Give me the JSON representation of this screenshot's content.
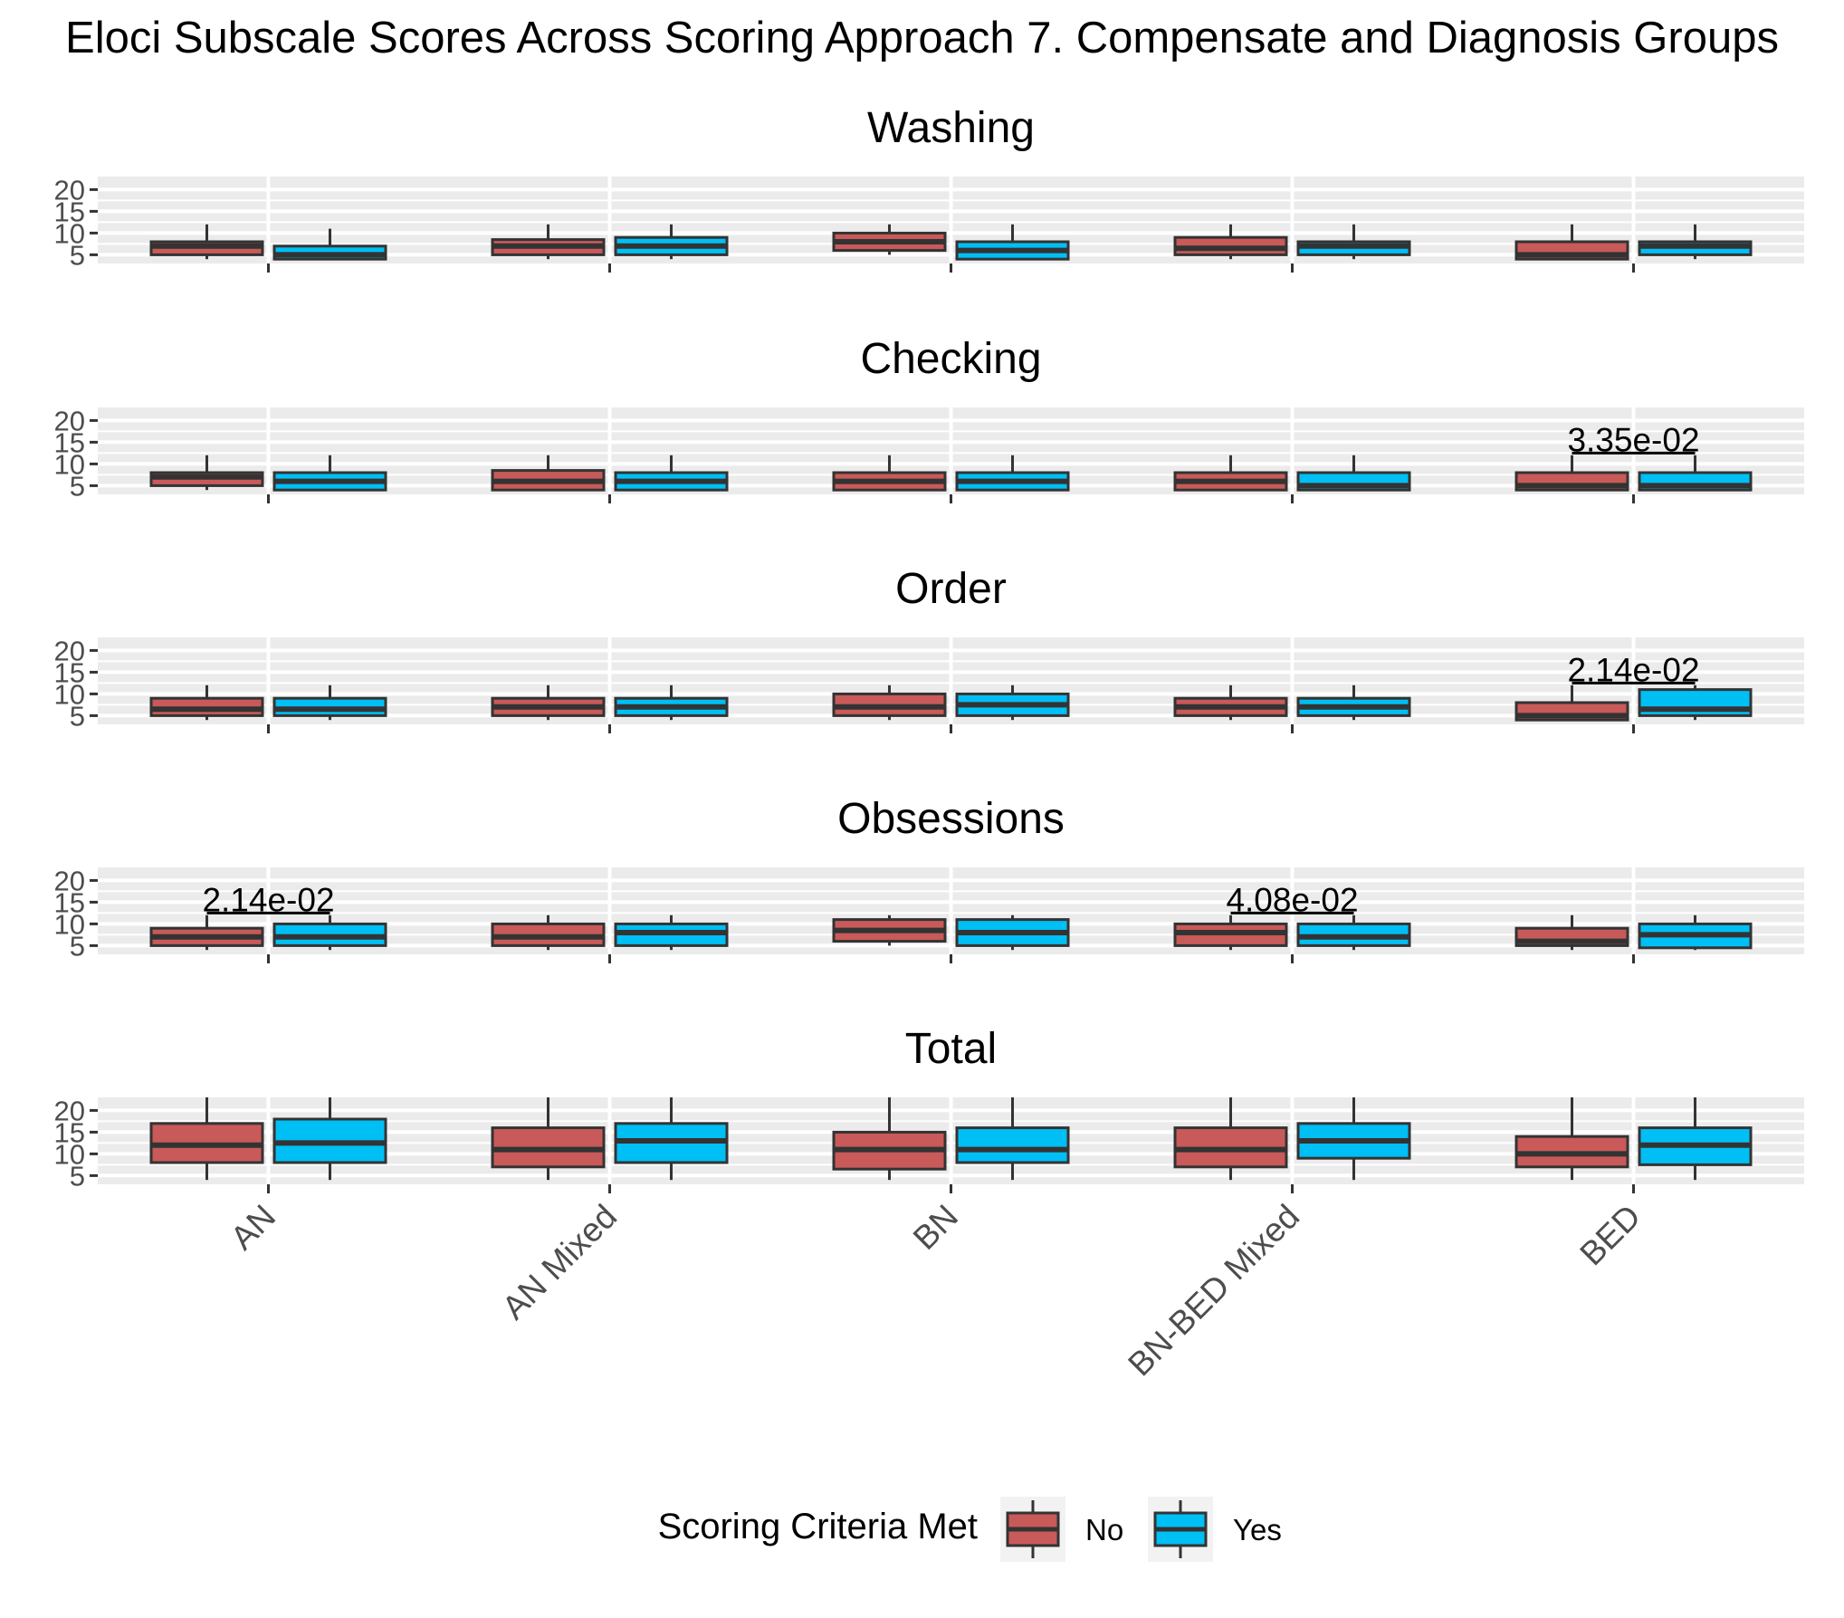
{
  "chart_data": {
    "type": "box",
    "title": "Eloci Subscale Scores Across Scoring Approach 7. Compensate and Diagnosis Groups",
    "categories": [
      "AN",
      "AN Mixed",
      "BN",
      "BN-BED Mixed",
      "BED"
    ],
    "legend": {
      "title": "Scoring Criteria Met",
      "position": "bottom",
      "entries": [
        {
          "label": "No",
          "color": "#c85a59"
        },
        {
          "label": "Yes",
          "color": "#00bff4"
        }
      ]
    },
    "y_ticks": [
      5,
      10,
      15,
      20
    ],
    "ylim": [
      3,
      23
    ],
    "grid": true,
    "facets": [
      {
        "name": "Washing",
        "series": [
          {
            "name": "No",
            "boxes": [
              {
                "min": 4,
                "q1": 5,
                "median": 7,
                "q3": 8,
                "max": 12
              },
              {
                "min": 4,
                "q1": 5,
                "median": 7,
                "q3": 8.5,
                "max": 12
              },
              {
                "min": 5,
                "q1": 6,
                "median": 8,
                "q3": 10,
                "max": 12
              },
              {
                "min": 4,
                "q1": 5,
                "median": 6.5,
                "q3": 9,
                "max": 12
              },
              {
                "min": 4,
                "q1": 4,
                "median": 5,
                "q3": 8,
                "max": 12
              }
            ]
          },
          {
            "name": "Yes",
            "boxes": [
              {
                "min": 4,
                "q1": 4,
                "median": 5,
                "q3": 7,
                "max": 11
              },
              {
                "min": 4,
                "q1": 5,
                "median": 7,
                "q3": 9,
                "max": 12
              },
              {
                "min": 4,
                "q1": 4,
                "median": 6,
                "q3": 8,
                "max": 12
              },
              {
                "min": 4,
                "q1": 5,
                "median": 7,
                "q3": 8,
                "max": 12
              },
              {
                "min": 4,
                "q1": 5,
                "median": 7,
                "q3": 8,
                "max": 12
              }
            ]
          }
        ],
        "annotations": []
      },
      {
        "name": "Checking",
        "series": [
          {
            "name": "No",
            "boxes": [
              {
                "min": 4,
                "q1": 5,
                "median": 7,
                "q3": 8,
                "max": 12
              },
              {
                "min": 4,
                "q1": 4,
                "median": 6,
                "q3": 8.5,
                "max": 12
              },
              {
                "min": 4,
                "q1": 4,
                "median": 6,
                "q3": 8,
                "max": 12
              },
              {
                "min": 4,
                "q1": 4,
                "median": 6,
                "q3": 8,
                "max": 12
              },
              {
                "min": 4,
                "q1": 4,
                "median": 5,
                "q3": 8,
                "max": 12
              }
            ]
          },
          {
            "name": "Yes",
            "boxes": [
              {
                "min": 4,
                "q1": 4,
                "median": 6,
                "q3": 8,
                "max": 12
              },
              {
                "min": 4,
                "q1": 4,
                "median": 6,
                "q3": 8,
                "max": 12
              },
              {
                "min": 4,
                "q1": 4,
                "median": 6,
                "q3": 8,
                "max": 12
              },
              {
                "min": 4,
                "q1": 4,
                "median": 5,
                "q3": 8,
                "max": 12
              },
              {
                "min": 4,
                "q1": 4,
                "median": 5,
                "q3": 8,
                "max": 12
              }
            ]
          }
        ],
        "annotations": [
          {
            "category": "BED",
            "label": "3.35e-02",
            "y": 12.5
          }
        ]
      },
      {
        "name": "Order",
        "series": [
          {
            "name": "No",
            "boxes": [
              {
                "min": 4,
                "q1": 5,
                "median": 6.5,
                "q3": 9,
                "max": 12
              },
              {
                "min": 4,
                "q1": 5,
                "median": 7,
                "q3": 9,
                "max": 12
              },
              {
                "min": 4,
                "q1": 5,
                "median": 7,
                "q3": 10,
                "max": 12
              },
              {
                "min": 4,
                "q1": 5,
                "median": 7,
                "q3": 9,
                "max": 12
              },
              {
                "min": 4,
                "q1": 4,
                "median": 5,
                "q3": 8,
                "max": 12
              }
            ]
          },
          {
            "name": "Yes",
            "boxes": [
              {
                "min": 4,
                "q1": 5,
                "median": 6.5,
                "q3": 9,
                "max": 12
              },
              {
                "min": 4,
                "q1": 5,
                "median": 7,
                "q3": 9,
                "max": 12
              },
              {
                "min": 4,
                "q1": 5,
                "median": 7.5,
                "q3": 10,
                "max": 12
              },
              {
                "min": 4,
                "q1": 5,
                "median": 7,
                "q3": 9,
                "max": 12
              },
              {
                "min": 4,
                "q1": 5,
                "median": 6.5,
                "q3": 11,
                "max": 12
              }
            ]
          }
        ],
        "annotations": [
          {
            "category": "BED",
            "label": "2.14e-02",
            "y": 12.5
          }
        ]
      },
      {
        "name": "Obsessions",
        "series": [
          {
            "name": "No",
            "boxes": [
              {
                "min": 4,
                "q1": 5,
                "median": 7,
                "q3": 9,
                "max": 12
              },
              {
                "min": 4,
                "q1": 5,
                "median": 7,
                "q3": 10,
                "max": 12
              },
              {
                "min": 5,
                "q1": 6,
                "median": 8.5,
                "q3": 11,
                "max": 12
              },
              {
                "min": 4,
                "q1": 5,
                "median": 8,
                "q3": 10,
                "max": 12
              },
              {
                "min": 4,
                "q1": 5,
                "median": 6,
                "q3": 9,
                "max": 12
              }
            ]
          },
          {
            "name": "Yes",
            "boxes": [
              {
                "min": 4,
                "q1": 5,
                "median": 7,
                "q3": 10,
                "max": 12
              },
              {
                "min": 4,
                "q1": 5,
                "median": 8,
                "q3": 10,
                "max": 12
              },
              {
                "min": 4,
                "q1": 5,
                "median": 8,
                "q3": 11,
                "max": 12
              },
              {
                "min": 4,
                "q1": 5,
                "median": 7,
                "q3": 10,
                "max": 12
              },
              {
                "min": 4,
                "q1": 4.5,
                "median": 7.5,
                "q3": 10,
                "max": 12
              }
            ]
          }
        ],
        "annotations": [
          {
            "category": "AN",
            "label": "2.14e-02",
            "y": 12.5
          },
          {
            "category": "BN-BED Mixed",
            "label": "4.08e-02",
            "y": 12.5
          }
        ]
      },
      {
        "name": "Total",
        "series": [
          {
            "name": "No",
            "boxes": [
              {
                "min": 4,
                "q1": 8,
                "median": 12,
                "q3": 17,
                "max": 23
              },
              {
                "min": 4,
                "q1": 7,
                "median": 11,
                "q3": 16,
                "max": 23
              },
              {
                "min": 4,
                "q1": 6.5,
                "median": 11,
                "q3": 15,
                "max": 23
              },
              {
                "min": 4,
                "q1": 7,
                "median": 11,
                "q3": 16,
                "max": 23
              },
              {
                "min": 4,
                "q1": 7,
                "median": 10,
                "q3": 14,
                "max": 23
              }
            ]
          },
          {
            "name": "Yes",
            "boxes": [
              {
                "min": 4,
                "q1": 8,
                "median": 12.5,
                "q3": 18,
                "max": 23
              },
              {
                "min": 4,
                "q1": 8,
                "median": 13,
                "q3": 17,
                "max": 23
              },
              {
                "min": 4,
                "q1": 8,
                "median": 11,
                "q3": 16,
                "max": 23
              },
              {
                "min": 4,
                "q1": 9,
                "median": 13,
                "q3": 17,
                "max": 23
              },
              {
                "min": 4,
                "q1": 7.5,
                "median": 12,
                "q3": 16,
                "max": 23
              }
            ]
          }
        ],
        "annotations": []
      }
    ]
  }
}
